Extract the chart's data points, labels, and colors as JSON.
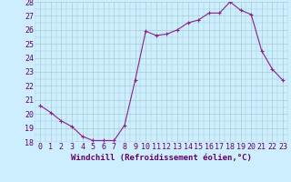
{
  "x": [
    0,
    1,
    2,
    3,
    4,
    5,
    6,
    7,
    8,
    9,
    10,
    11,
    12,
    13,
    14,
    15,
    16,
    17,
    18,
    19,
    20,
    21,
    22,
    23
  ],
  "y": [
    20.6,
    20.1,
    19.5,
    19.1,
    18.4,
    18.1,
    18.1,
    18.1,
    19.2,
    22.4,
    25.9,
    25.6,
    25.7,
    26.0,
    26.5,
    26.7,
    27.2,
    27.2,
    28.0,
    27.4,
    27.1,
    24.5,
    23.2,
    22.4
  ],
  "line_color": "#882288",
  "marker": "+",
  "marker_size": 3,
  "marker_lw": 0.8,
  "bg_color": "#cceeff",
  "grid_color": "#aacccc",
  "xlabel": "Windchill (Refroidissement éolien,°C)",
  "xlabel_fontsize": 6.5,
  "ylim": [
    18,
    28
  ],
  "xlim": [
    -0.5,
    23.5
  ],
  "yticks": [
    18,
    19,
    20,
    21,
    22,
    23,
    24,
    25,
    26,
    27,
    28
  ],
  "xticks": [
    0,
    1,
    2,
    3,
    4,
    5,
    6,
    7,
    8,
    9,
    10,
    11,
    12,
    13,
    14,
    15,
    16,
    17,
    18,
    19,
    20,
    21,
    22,
    23
  ],
  "tick_fontsize": 6.0,
  "line_width": 0.8
}
